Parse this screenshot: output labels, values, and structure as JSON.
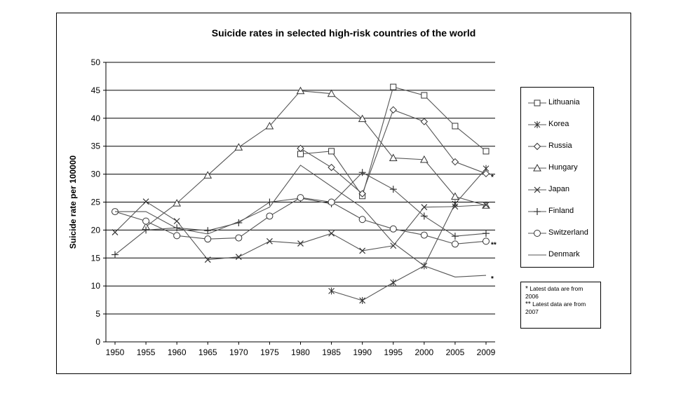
{
  "chart_data": {
    "type": "line",
    "title": "Suicide rates in selected high-risk countries of the world",
    "ylabel": "Suicide rate per 100000",
    "xlabel": "",
    "ylim": [
      0,
      50
    ],
    "yticks": [
      "0",
      "5",
      "10",
      "15",
      "20",
      "25",
      "30",
      "35",
      "40",
      "45",
      "50"
    ],
    "categories": [
      "1950",
      "1955",
      "1960",
      "1965",
      "1970",
      "1975",
      "1980",
      "1985",
      "1990",
      "1995",
      "2000",
      "2005",
      "2009"
    ],
    "grid": "horizontal",
    "legend_position": "right",
    "series": [
      {
        "name": "Lithuania",
        "marker": "square",
        "values": [
          null,
          null,
          null,
          null,
          null,
          null,
          33.6,
          34.1,
          26.1,
          45.6,
          44.1,
          38.6,
          34.1
        ]
      },
      {
        "name": "Korea",
        "marker": "star",
        "values": [
          null,
          null,
          null,
          null,
          null,
          null,
          null,
          9.1,
          7.4,
          10.6,
          13.6,
          24.7,
          31.0
        ]
      },
      {
        "name": "Russia",
        "marker": "diamond",
        "values": [
          null,
          null,
          null,
          null,
          null,
          null,
          34.6,
          31.2,
          26.5,
          41.5,
          39.4,
          32.2,
          30.1
        ]
      },
      {
        "name": "Hungary",
        "marker": "triangle",
        "values": [
          null,
          20.6,
          24.8,
          29.8,
          34.8,
          38.6,
          44.9,
          44.4,
          39.9,
          32.9,
          32.6,
          26.0,
          24.4
        ]
      },
      {
        "name": "Japan",
        "marker": "x",
        "values": [
          19.6,
          25.1,
          21.6,
          14.7,
          15.2,
          18.0,
          17.6,
          19.4,
          16.3,
          17.2,
          24.1,
          24.2,
          24.5
        ]
      },
      {
        "name": "Finland",
        "marker": "plus",
        "values": [
          15.6,
          20.0,
          20.4,
          19.9,
          21.3,
          25.0,
          25.7,
          24.7,
          30.3,
          27.3,
          22.5,
          18.9,
          19.4
        ]
      },
      {
        "name": "Switzerland",
        "marker": "circle",
        "values": [
          23.3,
          21.6,
          19.0,
          18.4,
          18.6,
          22.5,
          25.8,
          25.0,
          21.9,
          20.2,
          19.1,
          17.5,
          18.0
        ]
      },
      {
        "name": "Denmark",
        "marker": "none",
        "values": [
          23.3,
          23.3,
          20.3,
          19.3,
          21.5,
          24.1,
          31.6,
          null,
          24.0,
          17.7,
          13.6,
          11.6,
          11.9
        ]
      }
    ],
    "annotations": [
      {
        "series": "Russia",
        "text": "*"
      },
      {
        "series": "Switzerland",
        "text": "**"
      },
      {
        "series": "Denmark",
        "text": "*"
      }
    ],
    "notes": {
      "line1_star": "*",
      "line1": " Latest data are from  2006",
      "line2_star": "**",
      "line2": " Latest data are from 2007"
    }
  }
}
